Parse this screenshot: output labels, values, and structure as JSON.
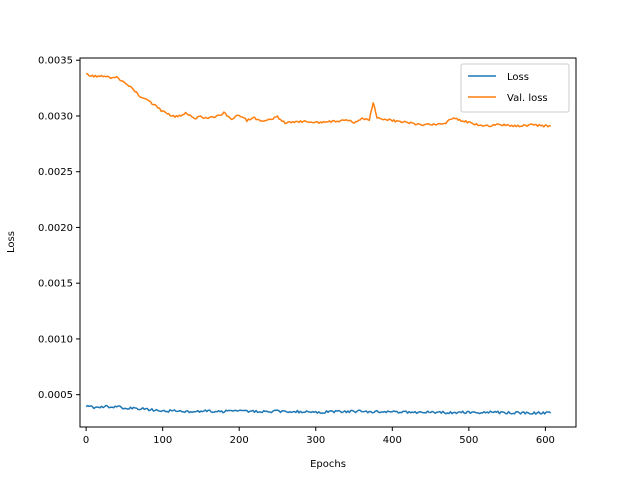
{
  "chart_data": {
    "type": "line",
    "title": "",
    "xlabel": "Epochs",
    "ylabel": "Loss",
    "xlim": [
      -8,
      640
    ],
    "ylim": [
      0.00021,
      0.00352
    ],
    "xticks": [
      0,
      100,
      200,
      300,
      400,
      500,
      600
    ],
    "xtick_labels": [
      "0",
      "100",
      "200",
      "300",
      "400",
      "500",
      "600"
    ],
    "yticks": [
      0.0005,
      0.001,
      0.0015,
      0.002,
      0.0025,
      0.003,
      0.0035
    ],
    "ytick_labels": [
      "0.0005",
      "0.0010",
      "0.0015",
      "0.0020",
      "0.0025",
      "0.0030",
      "0.0035"
    ],
    "grid": false,
    "legend_position": "top-right",
    "series": [
      {
        "name": "Loss",
        "color": "#1f77b4",
        "x": [
          0,
          10,
          20,
          30,
          40,
          50,
          60,
          70,
          80,
          90,
          100,
          125,
          150,
          175,
          200,
          250,
          300,
          350,
          400,
          450,
          500,
          550,
          607
        ],
        "y": [
          0.0004,
          0.00038,
          0.000395,
          0.00039,
          0.000395,
          0.00038,
          0.00038,
          0.000375,
          0.000365,
          0.00036,
          0.000355,
          0.00035,
          0.00035,
          0.00035,
          0.00035,
          0.00035,
          0.000345,
          0.00035,
          0.000345,
          0.00034,
          0.00034,
          0.00034,
          0.000335
        ]
      },
      {
        "name": "Val. loss",
        "color": "#ff7f0e",
        "x": [
          0,
          5,
          10,
          20,
          30,
          40,
          50,
          60,
          70,
          80,
          90,
          100,
          110,
          120,
          130,
          140,
          150,
          160,
          170,
          180,
          190,
          200,
          210,
          220,
          230,
          240,
          250,
          260,
          280,
          300,
          320,
          340,
          350,
          360,
          370,
          375,
          380,
          390,
          400,
          420,
          440,
          460,
          470,
          480,
          490,
          500,
          520,
          540,
          560,
          580,
          600,
          607
        ],
        "y": [
          0.00339,
          0.003355,
          0.00336,
          0.003355,
          0.003345,
          0.00335,
          0.0033,
          0.003255,
          0.00318,
          0.00314,
          0.0031,
          0.00304,
          0.00301,
          0.00299,
          0.00303,
          0.00298,
          0.00299,
          0.00298,
          0.00299,
          0.00303,
          0.00297,
          0.00301,
          0.00296,
          0.00298,
          0.00295,
          0.00297,
          0.00299,
          0.00294,
          0.00295,
          0.00294,
          0.00295,
          0.00296,
          0.00294,
          0.00298,
          0.00297,
          0.00312,
          0.00299,
          0.00297,
          0.00296,
          0.00294,
          0.00292,
          0.00293,
          0.00294,
          0.00299,
          0.00296,
          0.00294,
          0.00291,
          0.00292,
          0.00291,
          0.00292,
          0.00291,
          0.00291
        ]
      }
    ]
  }
}
